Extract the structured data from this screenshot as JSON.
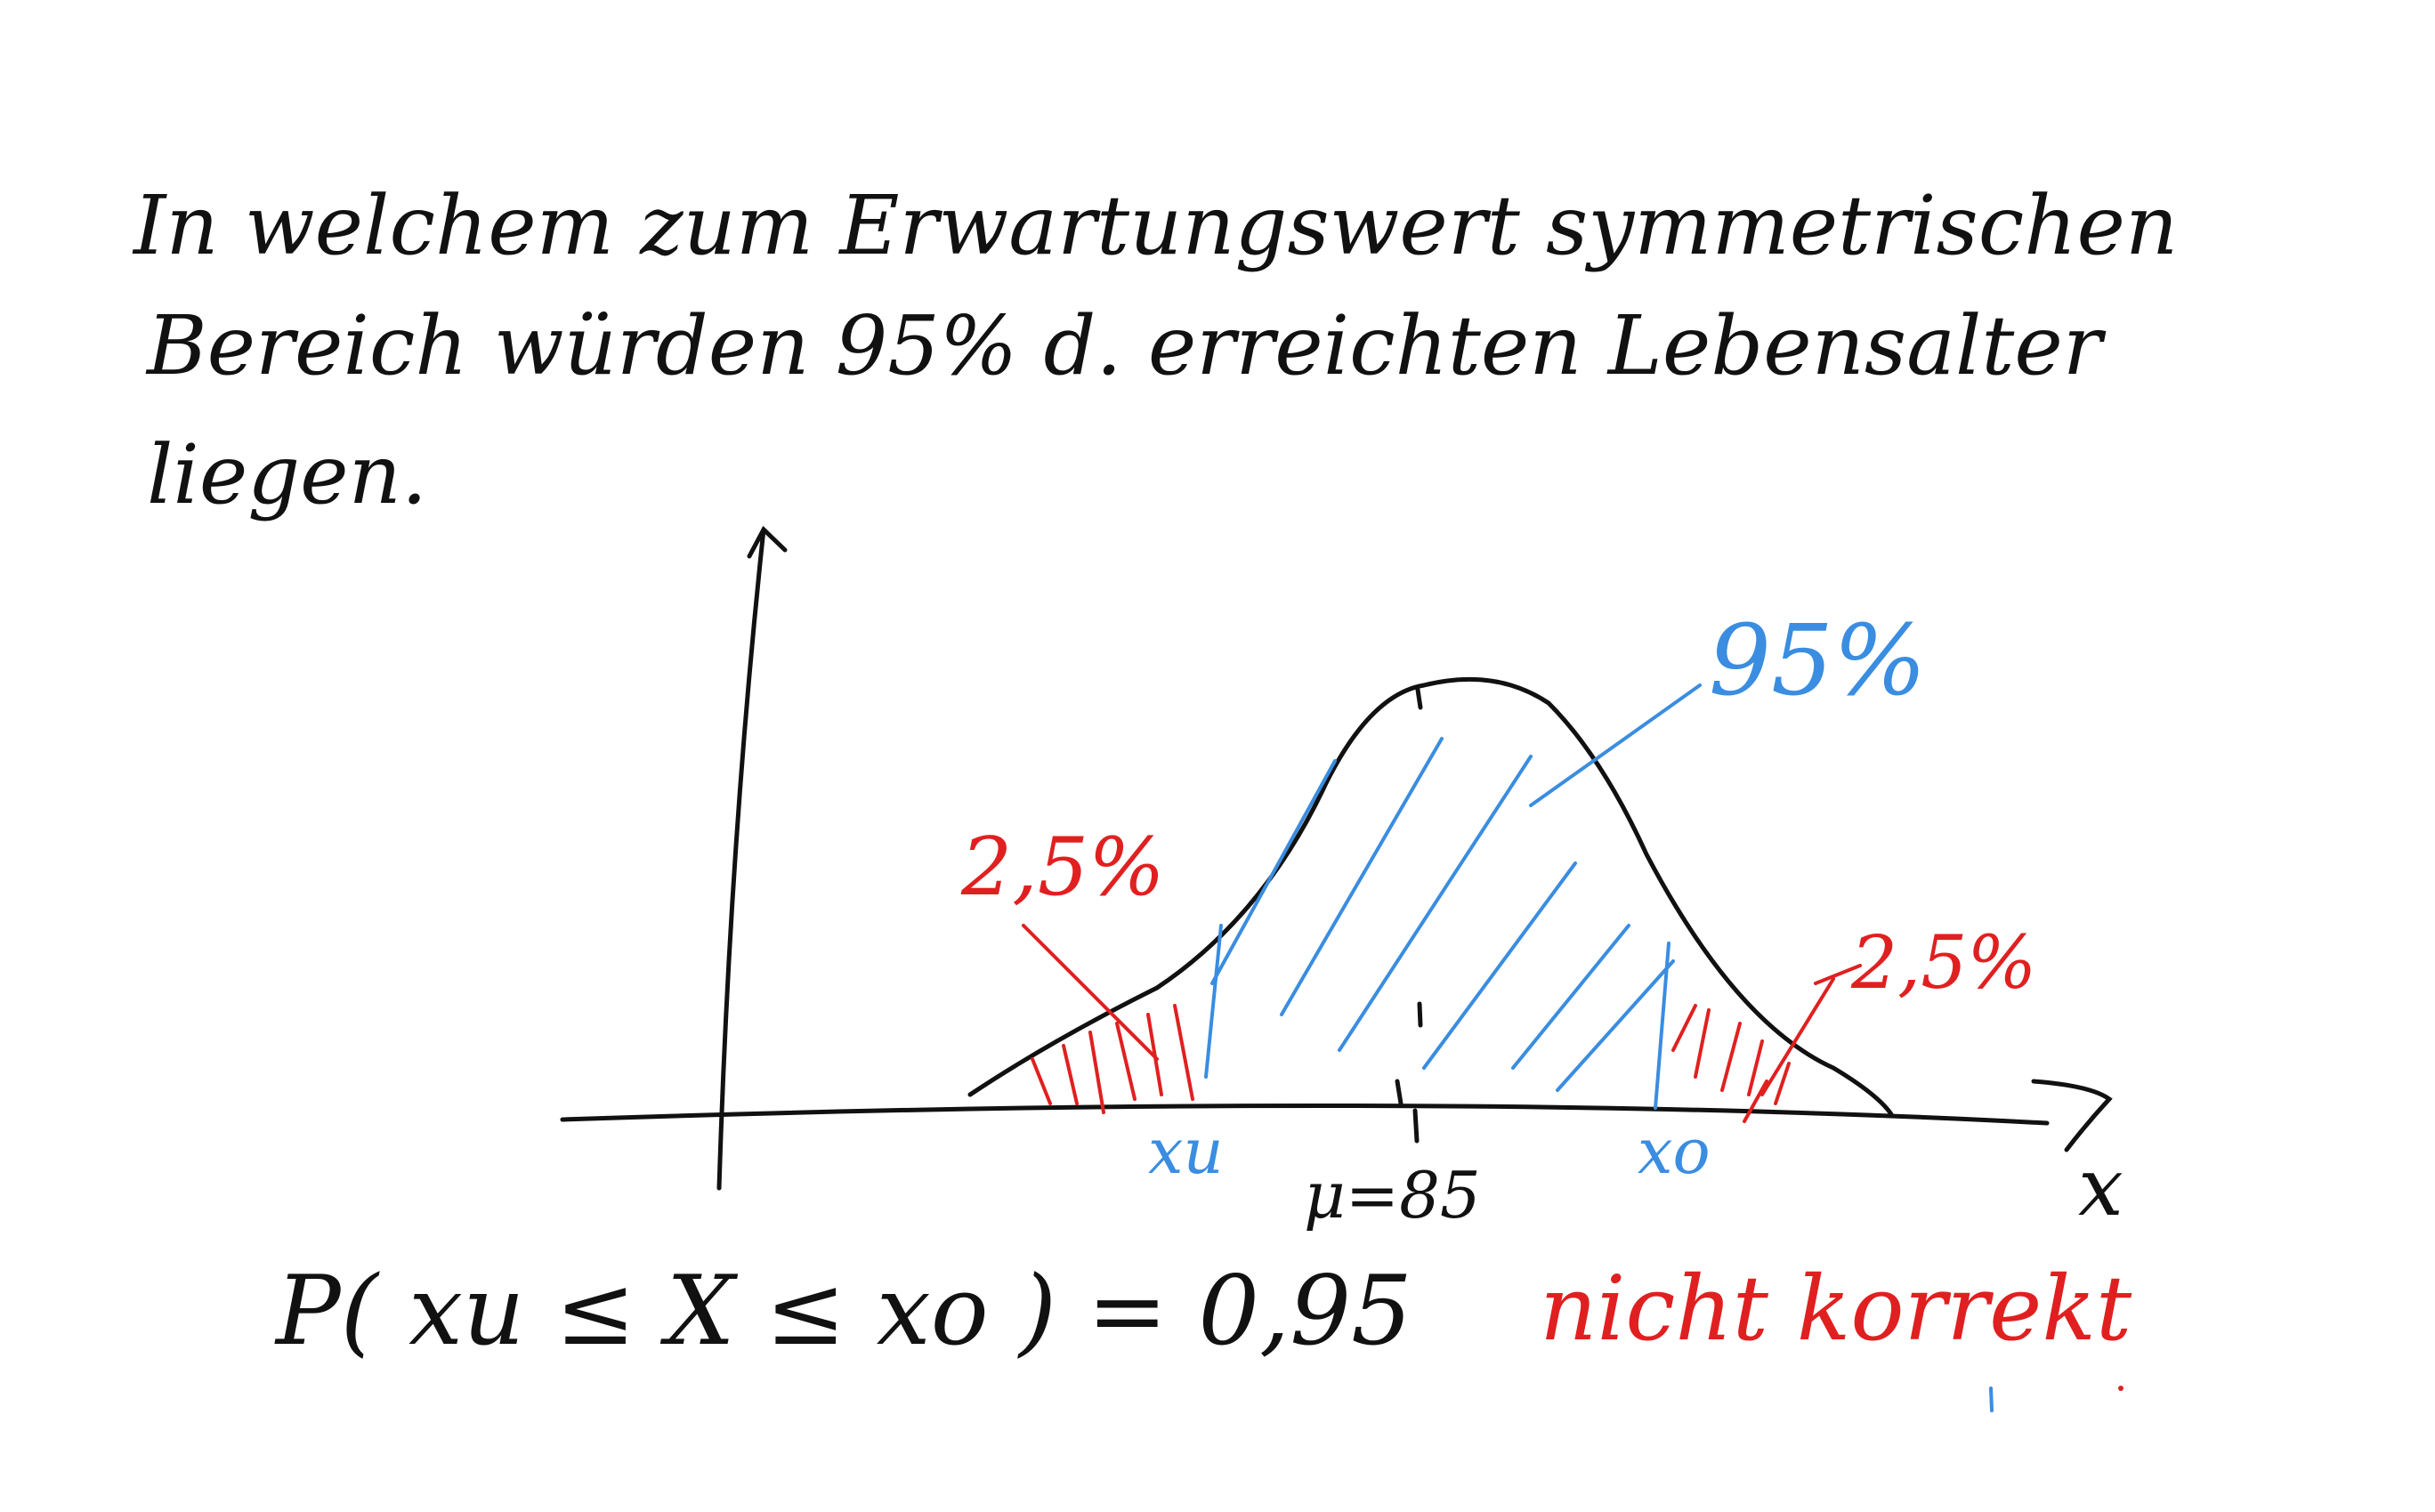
{
  "question": {
    "line1": "In welchem zum Erwartungswert symmetrischen",
    "line2": "Bereich würden 95% d. erreichten Lebensalter",
    "line3": "liegen."
  },
  "diagram": {
    "area_center_label": "95%",
    "tail_left_label": "2,5%",
    "tail_right_label": "2,5%",
    "x_lower_label": "xu",
    "x_upper_label": "xo",
    "mu_label": "μ=85",
    "x_axis_label": "x"
  },
  "equation": {
    "text": "P( xu ≤ X ≤ xo ) = 0,95",
    "note": "nicht korrekt"
  },
  "colors": {
    "ink": "#111111",
    "highlight_blue": "#3a8de0",
    "highlight_red": "#e02020"
  }
}
